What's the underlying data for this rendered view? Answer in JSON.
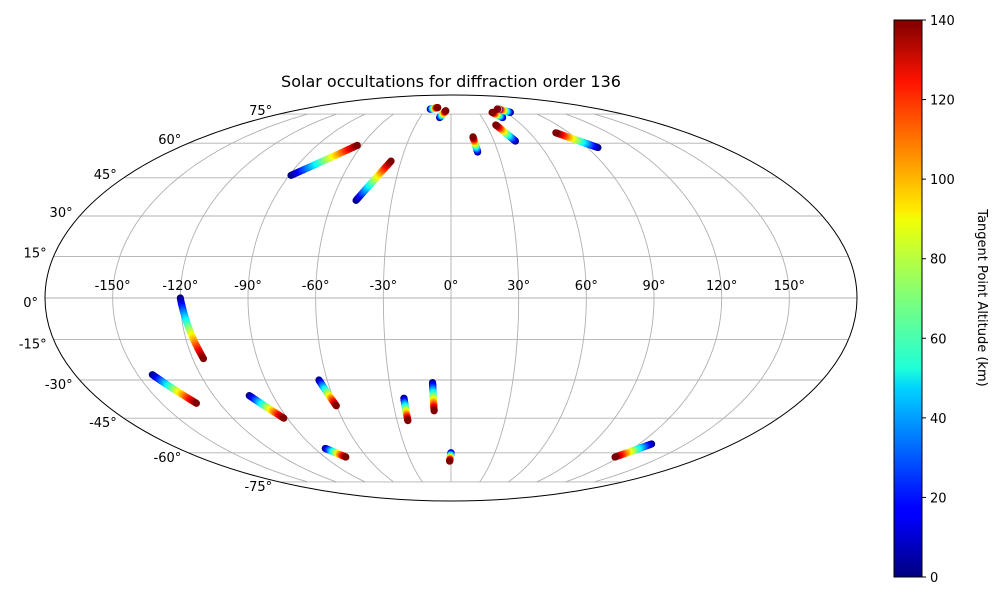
{
  "chart_data": {
    "type": "scatter",
    "projection": "mollweide",
    "title": "Solar occultations for diffraction order 136",
    "xlabel": "",
    "ylabel": "",
    "lon_ticks": [
      "-150°",
      "-120°",
      "-90°",
      "-60°",
      "-30°",
      "0°",
      "30°",
      "60°",
      "90°",
      "120°",
      "150°"
    ],
    "lon_tick_values": [
      -150,
      -120,
      -90,
      -60,
      -30,
      0,
      30,
      60,
      90,
      120,
      150
    ],
    "lat_ticks": [
      "75°",
      "60°",
      "45°",
      "30°",
      "15°",
      "0°",
      "-15°",
      "-30°",
      "-45°",
      "-60°",
      "-75°"
    ],
    "lat_tick_values": [
      75,
      60,
      45,
      30,
      15,
      0,
      -15,
      -30,
      -45,
      -60,
      -75
    ],
    "xlim": [
      -180,
      180
    ],
    "ylim": [
      -90,
      90
    ],
    "grid": true,
    "colorbar": {
      "label": "Tangent Point Altitude (km)",
      "range": [
        0,
        140
      ],
      "ticks": [
        "0",
        "20",
        "40",
        "60",
        "80",
        "100",
        "120",
        "140"
      ],
      "tick_values": [
        0,
        20,
        40,
        60,
        80,
        100,
        120,
        140
      ],
      "colormap": "jet"
    },
    "tracks": [
      {
        "lon_low": -89,
        "lat_low": 46,
        "lon_high": -63,
        "lat_high": 59
      },
      {
        "lon_low": -48,
        "lat_low": 36,
        "lon_high": -36,
        "lat_high": 52
      },
      {
        "lon_low": -25,
        "lat_low": 78,
        "lon_high": -17,
        "lat_high": 79
      },
      {
        "lon_low": -11,
        "lat_low": 73,
        "lon_high": -6,
        "lat_high": 77
      },
      {
        "lon_low": 17,
        "lat_low": 56,
        "lon_high": 16,
        "lat_high": 63
      },
      {
        "lon_low": 45,
        "lat_low": 61,
        "lon_high": 38,
        "lat_high": 69
      },
      {
        "lon_low": 50,
        "lat_low": 73,
        "lon_high": 45,
        "lat_high": 76
      },
      {
        "lon_low": 65,
        "lat_low": 76,
        "lon_high": 57,
        "lat_high": 78
      },
      {
        "lon_low": 58,
        "lat_low": 78,
        "lon_high": 56,
        "lat_high": 78
      },
      {
        "lon_low": 97,
        "lat_low": 58,
        "lon_high": 80,
        "lat_high": 65
      },
      {
        "lon_low": -120,
        "lat_low": 0,
        "lon_high": -115,
        "lat_high": -22
      },
      {
        "lon_low": -143,
        "lat_low": -28,
        "lon_high": -132,
        "lat_high": -39
      },
      {
        "lon_low": -102,
        "lat_low": -36,
        "lon_high": -92,
        "lat_high": -45
      },
      {
        "lon_low": -64,
        "lat_low": -30,
        "lon_high": -60,
        "lat_high": -40
      },
      {
        "lon_low": -24,
        "lat_low": -37,
        "lon_high": -24,
        "lat_high": -46
      },
      {
        "lon_low": -9,
        "lat_low": -31,
        "lon_high": -9,
        "lat_high": -42
      },
      {
        "lon_low": -83,
        "lat_low": -58,
        "lon_high": -75,
        "lat_high": -62
      },
      {
        "lon_low": 0,
        "lat_low": -60,
        "lon_high": -1,
        "lat_high": -64
      },
      {
        "lon_low": 128,
        "lat_low": -56,
        "lon_high": 117,
        "lat_high": -62
      }
    ]
  }
}
